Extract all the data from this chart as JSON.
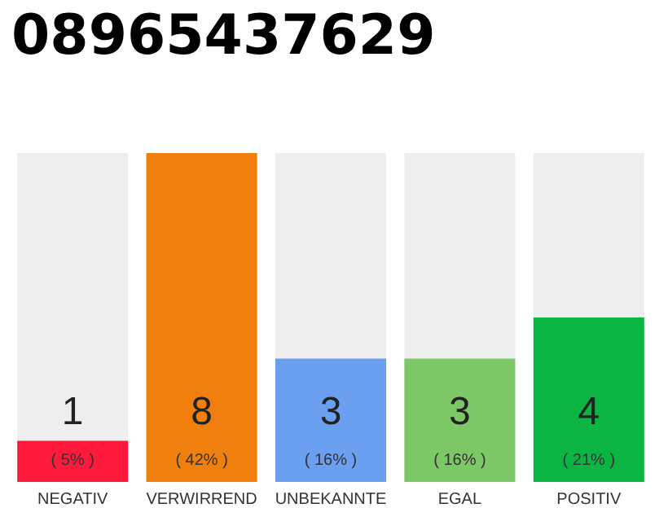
{
  "chart_data": {
    "type": "bar",
    "title": "08965437629",
    "categories": [
      "NEGATIV",
      "VERWIRREND",
      "UNBEKANNTE",
      "EGAL",
      "POSITIV"
    ],
    "values": [
      1,
      8,
      3,
      3,
      4
    ],
    "colors": [
      "#ff1a3c",
      "#f07f0e",
      "#6aa0ef",
      "#7dc866",
      "#0ab544"
    ],
    "value_labels": [
      "1\n( 5% )",
      "8\n( 42% )",
      "3\n( 16% )",
      "3\n( 16% )",
      "4\n( 21% )"
    ],
    "ylim": [
      0,
      8
    ],
    "tick_labels": "x"
  }
}
